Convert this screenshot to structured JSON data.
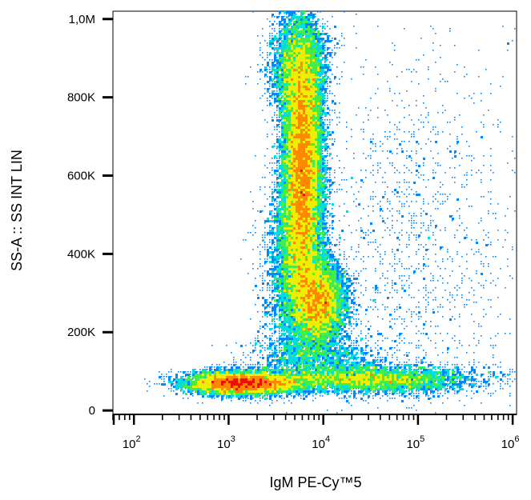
{
  "chart_data": {
    "type": "scatter",
    "subtype": "flow-cytometry density dot plot",
    "xlabel": "IgM PE-Cy™5",
    "ylabel": "SS-A :: SS INT LIN",
    "x_scale": "log",
    "y_scale": "linear",
    "xlim": [
      60,
      1100000
    ],
    "ylim": [
      -10000,
      1020000
    ],
    "x_ticks": [
      {
        "value": 100,
        "base": "10",
        "exp": "2"
      },
      {
        "value": 1000,
        "base": "10",
        "exp": "3"
      },
      {
        "value": 10000,
        "base": "10",
        "exp": "4"
      },
      {
        "value": 100000,
        "base": "10",
        "exp": "5"
      },
      {
        "value": 1000000,
        "base": "10",
        "exp": "6"
      }
    ],
    "y_ticks": [
      {
        "value": 0,
        "label": "0"
      },
      {
        "value": 200000,
        "label": "200K"
      },
      {
        "value": 400000,
        "label": "400K"
      },
      {
        "value": 600000,
        "label": "600K"
      },
      {
        "value": 800000,
        "label": "800K"
      },
      {
        "value": 1000000,
        "label": "1,0M"
      }
    ],
    "density_colormap": [
      "#0000cd",
      "#0088ff",
      "#00dddd",
      "#44ee44",
      "#eeee00",
      "#ff8800",
      "#ee1100"
    ],
    "populations": [
      {
        "x_center": 6000,
        "x_spread_decades": 0.11,
        "y_center": 620000,
        "y_spread": 170000,
        "tilt": 0.0,
        "weight": 0.4
      },
      {
        "x_center": 5500,
        "x_spread_decades": 0.16,
        "y_center": 880000,
        "y_spread": 70000,
        "tilt": 0.0,
        "weight": 0.07
      },
      {
        "x_center": 9000,
        "x_spread_decades": 0.14,
        "y_center": 275000,
        "y_spread": 55000,
        "tilt": 0.0,
        "weight": 0.13
      },
      {
        "x_center": 5000,
        "x_spread_decades": 0.16,
        "y_center": 350000,
        "y_spread": 110000,
        "tilt": 0.0,
        "weight": 0.08
      },
      {
        "x_center": 1400,
        "x_spread_decades": 0.3,
        "y_center": 70000,
        "y_spread": 15000,
        "tilt": 0.0,
        "weight": 0.16
      },
      {
        "x_center": 30000,
        "x_spread_decades": 0.55,
        "y_center": 80000,
        "y_spread": 18000,
        "tilt": 0.0,
        "weight": 0.1
      },
      {
        "x_center": 8000,
        "x_spread_decades": 0.35,
        "y_center": 140000,
        "y_spread": 30000,
        "tilt": 0.0,
        "weight": 0.03
      },
      {
        "x_center": 90000,
        "x_spread_decades": 0.5,
        "y_center": 380000,
        "y_spread": 260000,
        "tilt": 0.0,
        "weight": 0.03
      }
    ]
  }
}
